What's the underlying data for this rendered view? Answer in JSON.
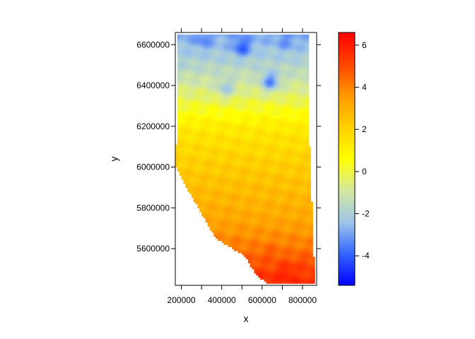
{
  "chart_data": {
    "type": "heatmap",
    "title": "",
    "xlabel": "x",
    "ylabel": "y",
    "xlim": [
      170000,
      870000
    ],
    "ylim": [
      5420000,
      6660000
    ],
    "x_ticks": [
      {
        "value": 200000,
        "label": "200000"
      },
      {
        "value": 300000,
        "label": ""
      },
      {
        "value": 400000,
        "label": "400000"
      },
      {
        "value": 500000,
        "label": ""
      },
      {
        "value": 600000,
        "label": "600000"
      },
      {
        "value": 700000,
        "label": ""
      },
      {
        "value": 800000,
        "label": "800000"
      }
    ],
    "y_ticks": [
      {
        "value": 5600000,
        "label": "5600000"
      },
      {
        "value": 5800000,
        "label": "5800000"
      },
      {
        "value": 6000000,
        "label": "6000000"
      },
      {
        "value": 6200000,
        "label": "6200000"
      },
      {
        "value": 6400000,
        "label": "6400000"
      },
      {
        "value": 6600000,
        "label": "6600000"
      }
    ],
    "colorbar": {
      "zlim": [
        -5.4,
        6.6
      ],
      "ticks": [
        {
          "value": -4,
          "label": "-4"
        },
        {
          "value": -2,
          "label": "-2"
        },
        {
          "value": 0,
          "label": "0"
        },
        {
          "value": 2,
          "label": "2"
        },
        {
          "value": 4,
          "label": "4"
        },
        {
          "value": 6,
          "label": "6"
        }
      ],
      "colors": [
        "#0000ff",
        "#3366ff",
        "#9ec5e8",
        "#d4e8a0",
        "#ffff00",
        "#ffd000",
        "#ff9900",
        "#ff4400",
        "#ff0000"
      ]
    },
    "region": {
      "outline": [
        [
          180000,
          6650000
        ],
        [
          830000,
          6650000
        ],
        [
          830000,
          6240000
        ],
        [
          860000,
          5430000
        ],
        [
          630000,
          5430000
        ],
        [
          570000,
          5470000
        ],
        [
          520000,
          5560000
        ],
        [
          440000,
          5610000
        ],
        [
          370000,
          5650000
        ],
        [
          290000,
          5790000
        ],
        [
          220000,
          5910000
        ],
        [
          170000,
          6010000
        ],
        [
          180000,
          6200000
        ]
      ],
      "value_gradient_y": [
        [
          6650000,
          -2.8
        ],
        [
          6500000,
          -1.8
        ],
        [
          6350000,
          -0.4
        ],
        [
          6200000,
          1.2
        ],
        [
          6050000,
          2.0
        ],
        [
          5900000,
          2.6
        ],
        [
          5750000,
          3.2
        ],
        [
          5600000,
          4.2
        ],
        [
          5450000,
          5.6
        ]
      ],
      "cold_spots": [
        {
          "x": 500000,
          "y": 6590000,
          "value": -4.0
        },
        {
          "x": 310000,
          "y": 6630000,
          "value": -3.4
        },
        {
          "x": 720000,
          "y": 6620000,
          "value": -3.2
        },
        {
          "x": 640000,
          "y": 6420000,
          "value": -3.4
        },
        {
          "x": 420000,
          "y": 6390000,
          "value": -2.2
        }
      ],
      "warm_spots": [
        {
          "x": 720000,
          "y": 5480000,
          "value": 5.8
        },
        {
          "x": 800000,
          "y": 5500000,
          "value": 5.2
        },
        {
          "x": 640000,
          "y": 5560000,
          "value": 4.8
        }
      ]
    }
  }
}
